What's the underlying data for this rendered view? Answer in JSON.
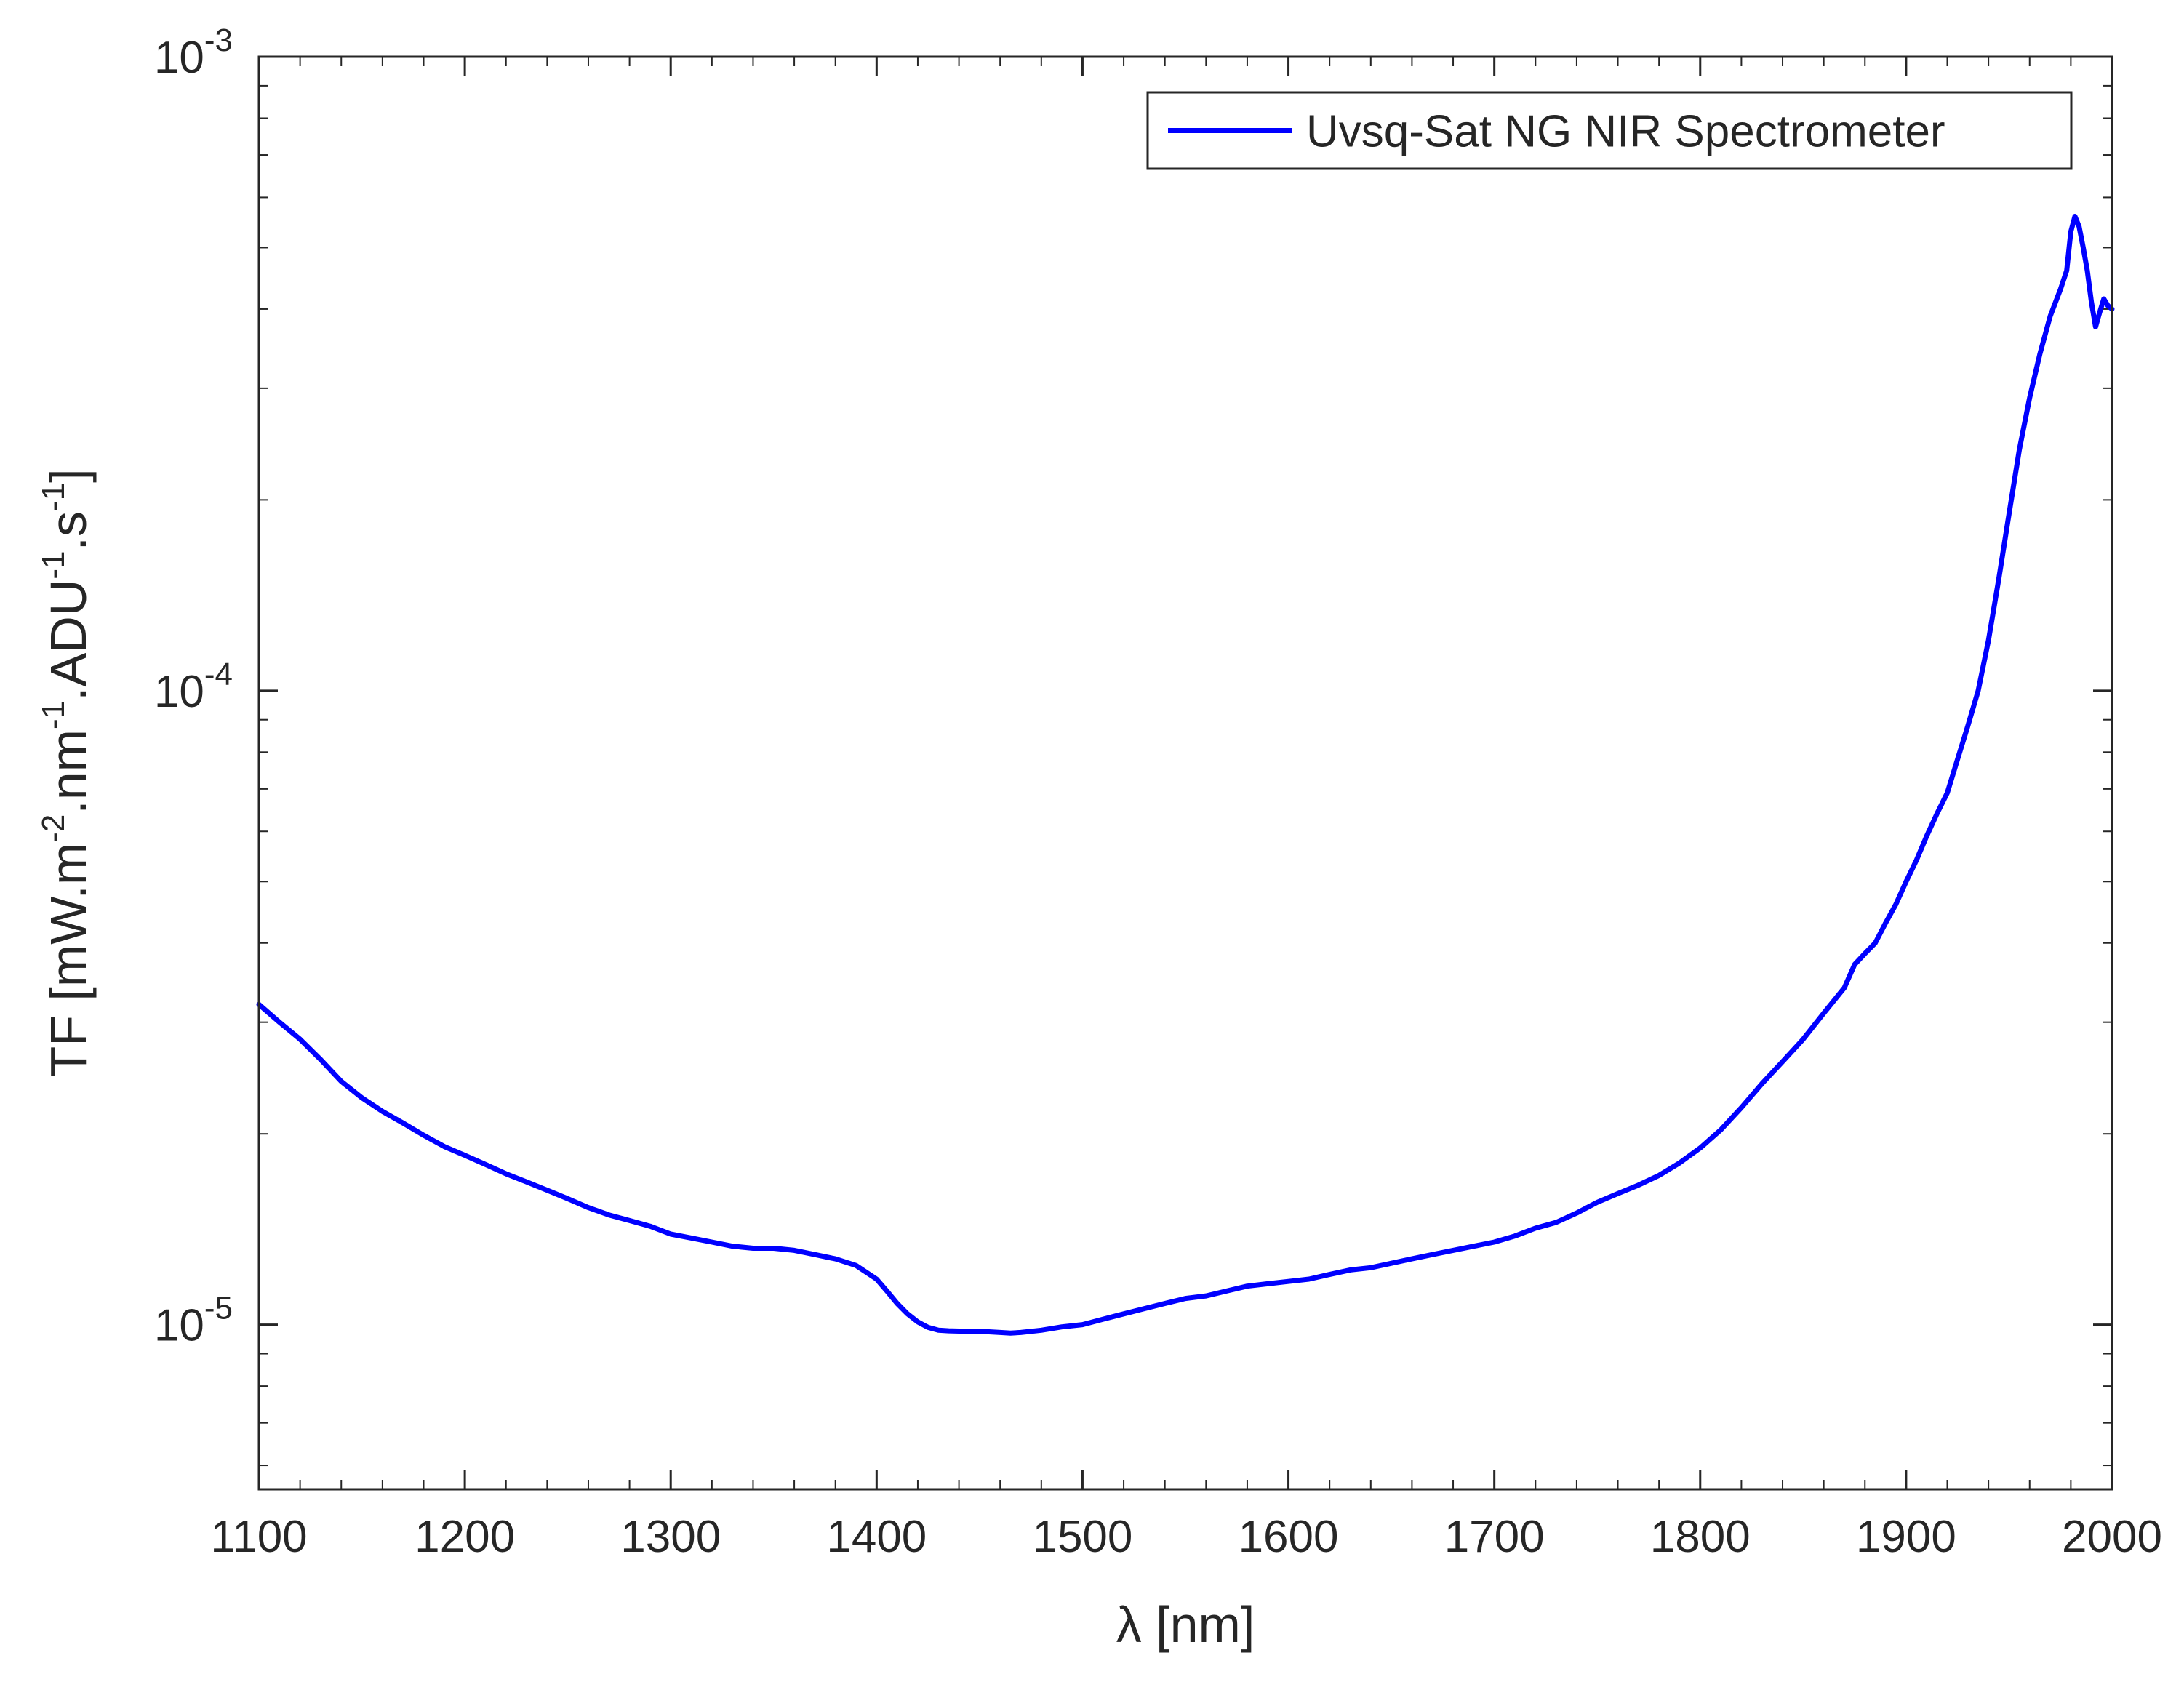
{
  "chart_data": {
    "type": "line",
    "title": "",
    "xlabel": "λ [nm]",
    "ylabel": {
      "prefix": "TF [mW.m",
      "parts": [
        {
          "exp": "-2",
          "after": ".nm"
        },
        {
          "exp": "-1",
          "after": ".ADU"
        },
        {
          "exp": "-1",
          "after": ".s"
        },
        {
          "exp": "-1",
          "after": "]"
        }
      ]
    },
    "yscale": "log",
    "xlim": [
      1100,
      2000
    ],
    "ylim": [
      5.5e-06,
      0.001
    ],
    "xticks": [
      1100,
      1200,
      1300,
      1400,
      1500,
      1600,
      1700,
      1800,
      1900,
      2000
    ],
    "yticks": [
      {
        "value": 1e-05,
        "base": "10",
        "exp": "-5"
      },
      {
        "value": 0.0001,
        "base": "10",
        "exp": "-4"
      },
      {
        "value": 0.001,
        "base": "10",
        "exp": "-3"
      }
    ],
    "legend_position": "top-right",
    "series": [
      {
        "name": "Uvsq-Sat NG NIR Spectrometer",
        "color": "#0000ff",
        "x": [
          1100,
          1110,
          1120,
          1130,
          1140,
          1150,
          1160,
          1170,
          1180,
          1190,
          1200,
          1210,
          1220,
          1230,
          1240,
          1250,
          1260,
          1270,
          1280,
          1290,
          1300,
          1310,
          1320,
          1330,
          1340,
          1350,
          1360,
          1370,
          1380,
          1390,
          1400,
          1405,
          1410,
          1415,
          1420,
          1425,
          1430,
          1435,
          1440,
          1450,
          1460,
          1465,
          1470,
          1480,
          1490,
          1500,
          1510,
          1520,
          1530,
          1540,
          1550,
          1560,
          1570,
          1580,
          1590,
          1600,
          1610,
          1620,
          1630,
          1640,
          1650,
          1660,
          1670,
          1680,
          1690,
          1700,
          1710,
          1720,
          1730,
          1740,
          1750,
          1760,
          1770,
          1780,
          1790,
          1800,
          1810,
          1820,
          1830,
          1840,
          1850,
          1860,
          1870,
          1875,
          1880,
          1885,
          1890,
          1895,
          1900,
          1905,
          1910,
          1915,
          1920,
          1925,
          1930,
          1935,
          1940,
          1945,
          1950,
          1955,
          1960,
          1965,
          1970,
          1975,
          1978,
          1980,
          1982,
          1984,
          1986,
          1988,
          1990,
          1992,
          1994,
          1996,
          1998,
          2000
        ],
        "y": [
          3.2e-05,
          3e-05,
          2.82e-05,
          2.62e-05,
          2.42e-05,
          2.28e-05,
          2.17e-05,
          2.08e-05,
          1.99e-05,
          1.91e-05,
          1.85e-05,
          1.79e-05,
          1.73e-05,
          1.68e-05,
          1.63e-05,
          1.58e-05,
          1.53e-05,
          1.49e-05,
          1.46e-05,
          1.43e-05,
          1.39e-05,
          1.37e-05,
          1.35e-05,
          1.33e-05,
          1.32e-05,
          1.32e-05,
          1.31e-05,
          1.29e-05,
          1.27e-05,
          1.24e-05,
          1.18e-05,
          1.13e-05,
          1.08e-05,
          1.04e-05,
          1.01e-05,
          9.9e-06,
          9.8e-06,
          9.78e-06,
          9.77e-06,
          9.76e-06,
          9.72e-06,
          9.7e-06,
          9.72e-06,
          9.8e-06,
          9.92e-06,
          1e-05,
          1.02e-05,
          1.04e-05,
          1.06e-05,
          1.08e-05,
          1.1e-05,
          1.11e-05,
          1.13e-05,
          1.15e-05,
          1.16e-05,
          1.17e-05,
          1.18e-05,
          1.2e-05,
          1.22e-05,
          1.23e-05,
          1.25e-05,
          1.27e-05,
          1.29e-05,
          1.31e-05,
          1.33e-05,
          1.35e-05,
          1.38e-05,
          1.42e-05,
          1.45e-05,
          1.5e-05,
          1.56e-05,
          1.61e-05,
          1.66e-05,
          1.72e-05,
          1.8e-05,
          1.9e-05,
          2.03e-05,
          2.2e-05,
          2.4e-05,
          2.6e-05,
          2.82e-05,
          3.1e-05,
          3.4e-05,
          3.7e-05,
          3.85e-05,
          4e-05,
          4.3e-05,
          4.6e-05,
          5e-05,
          5.4e-05,
          5.9e-05,
          6.4e-05,
          6.9e-05,
          7.8e-05,
          8.8e-05,
          0.0001,
          0.00012,
          0.00015,
          0.00019,
          0.00024,
          0.00029,
          0.00034,
          0.00039,
          0.00043,
          0.00046,
          0.00053,
          0.00056,
          0.00054,
          0.0005,
          0.00046,
          0.00041,
          0.000375,
          0.000395,
          0.000415,
          0.000405,
          0.0004
        ]
      }
    ]
  }
}
